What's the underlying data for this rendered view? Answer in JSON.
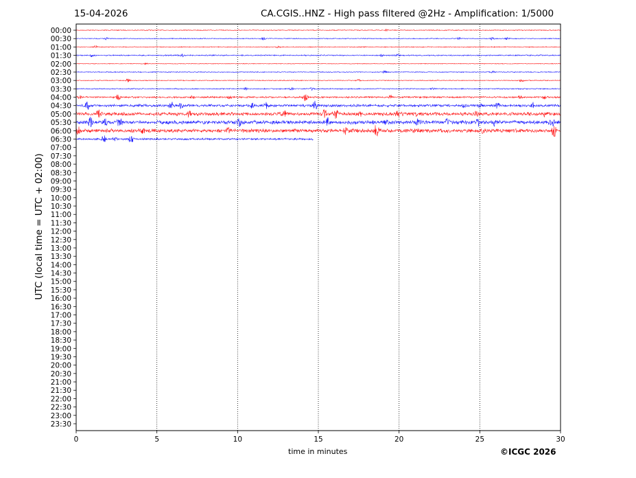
{
  "date": "15-04-2026",
  "title": "CA.CGIS..HNZ - High pass filtered @2Hz - Amplification: 1/5000",
  "copyright": "©ICGC 2026",
  "chart_data": {
    "type": "line",
    "xlabel": "time in minutes",
    "ylabel": "UTC (local time = UTC + 02:00)",
    "xlim": [
      0,
      30
    ],
    "xticks": [
      "0",
      "5",
      "10",
      "15",
      "20",
      "25",
      "30"
    ],
    "grid": "vertical dotted at 5-minute intervals",
    "colors": [
      "#ff0000",
      "#0000ff"
    ],
    "row_labels": [
      "00:00",
      "00:30",
      "01:00",
      "01:30",
      "02:00",
      "02:30",
      "03:00",
      "03:30",
      "04:00",
      "04:30",
      "05:00",
      "05:30",
      "06:00",
      "06:30",
      "07:00",
      "07:30",
      "08:00",
      "08:30",
      "09:00",
      "09:30",
      "10:00",
      "10:30",
      "11:00",
      "11:30",
      "12:00",
      "12:30",
      "13:00",
      "13:30",
      "14:00",
      "14:30",
      "15:00",
      "15:30",
      "16:00",
      "16:30",
      "17:00",
      "17:30",
      "18:00",
      "18:30",
      "19:00",
      "19:30",
      "20:00",
      "20:30",
      "21:00",
      "21:30",
      "22:00",
      "22:30",
      "23:00",
      "23:30"
    ],
    "traces": [
      {
        "row": "00:00",
        "end_min": 30,
        "noise": 0.05,
        "events": [
          [
            19.2,
            0.1
          ]
        ]
      },
      {
        "row": "00:30",
        "end_min": 30,
        "noise": 0.05,
        "events": [
          [
            1.9,
            0.15
          ],
          [
            11.6,
            0.2
          ],
          [
            23.7,
            0.15
          ],
          [
            25.8,
            0.2
          ],
          [
            26.7,
            0.15
          ]
        ]
      },
      {
        "row": "01:00",
        "end_min": 30,
        "noise": 0.05,
        "events": [
          [
            1.2,
            0.15
          ],
          [
            12.5,
            0.1
          ]
        ]
      },
      {
        "row": "01:30",
        "end_min": 30,
        "noise": 0.07,
        "events": [
          [
            1.0,
            0.2
          ],
          [
            6.6,
            0.15
          ],
          [
            18.9,
            0.15
          ],
          [
            19.9,
            0.15
          ]
        ]
      },
      {
        "row": "02:00",
        "end_min": 30,
        "noise": 0.04,
        "events": [
          [
            4.3,
            0.1
          ]
        ]
      },
      {
        "row": "02:30",
        "end_min": 30,
        "noise": 0.05,
        "events": [
          [
            19.1,
            0.2
          ],
          [
            25.8,
            0.15
          ]
        ]
      },
      {
        "row": "03:00",
        "end_min": 30,
        "noise": 0.05,
        "events": [
          [
            3.2,
            0.2
          ],
          [
            17.5,
            0.15
          ],
          [
            27.6,
            0.2
          ]
        ]
      },
      {
        "row": "03:30",
        "end_min": 30,
        "noise": 0.06,
        "events": [
          [
            10.5,
            0.15
          ],
          [
            13.3,
            0.2
          ],
          [
            14.6,
            0.15
          ],
          [
            22.1,
            0.15
          ]
        ]
      },
      {
        "row": "04:00",
        "end_min": 30,
        "noise": 0.1,
        "events": [
          [
            0.2,
            0.2
          ],
          [
            2.6,
            0.35
          ],
          [
            7.2,
            0.2
          ],
          [
            9.5,
            0.2
          ],
          [
            14.2,
            0.6
          ],
          [
            19.5,
            0.25
          ],
          [
            27.5,
            0.2
          ],
          [
            29.0,
            0.25
          ]
        ]
      },
      {
        "row": "04:30",
        "end_min": 30,
        "noise": 0.15,
        "events": [
          [
            0.7,
            0.6
          ],
          [
            5.9,
            0.5
          ],
          [
            6.5,
            0.35
          ],
          [
            10.9,
            0.3
          ],
          [
            11.8,
            0.4
          ],
          [
            14.8,
            0.6
          ],
          [
            24.0,
            0.25
          ],
          [
            25.0,
            0.3
          ],
          [
            26.1,
            0.4
          ],
          [
            28.3,
            0.35
          ]
        ]
      },
      {
        "row": "05:00",
        "end_min": 30,
        "noise": 0.2,
        "events": [
          [
            1.4,
            0.6
          ],
          [
            7.0,
            0.4
          ],
          [
            12.9,
            0.4
          ],
          [
            15.4,
            0.5
          ],
          [
            16.1,
            0.6
          ],
          [
            17.6,
            0.3
          ],
          [
            19.9,
            0.4
          ],
          [
            21.0,
            0.3
          ],
          [
            24.8,
            0.3
          ],
          [
            29.0,
            0.45
          ]
        ]
      },
      {
        "row": "05:30",
        "end_min": 30,
        "noise": 0.22,
        "events": [
          [
            0.9,
            0.8
          ],
          [
            1.8,
            0.4
          ],
          [
            2.7,
            0.8
          ],
          [
            10.1,
            0.5
          ],
          [
            15.6,
            0.5
          ],
          [
            19.2,
            0.35
          ],
          [
            21.2,
            0.4
          ],
          [
            23.0,
            0.4
          ],
          [
            24.9,
            0.5
          ],
          [
            25.9,
            0.4
          ],
          [
            29.5,
            0.5
          ]
        ]
      },
      {
        "row": "06:00",
        "end_min": 30,
        "noise": 0.22,
        "events": [
          [
            0.1,
            0.6
          ],
          [
            4.1,
            0.6
          ],
          [
            9.4,
            0.4
          ],
          [
            16.7,
            0.4
          ],
          [
            18.6,
            0.8
          ],
          [
            25.2,
            0.3
          ],
          [
            29.6,
            0.8
          ]
        ]
      },
      {
        "row": "06:30",
        "end_min": 14.7,
        "noise": 0.12,
        "events": [
          [
            1.7,
            0.5
          ],
          [
            2.4,
            0.3
          ],
          [
            3.4,
            0.7
          ]
        ]
      }
    ]
  }
}
